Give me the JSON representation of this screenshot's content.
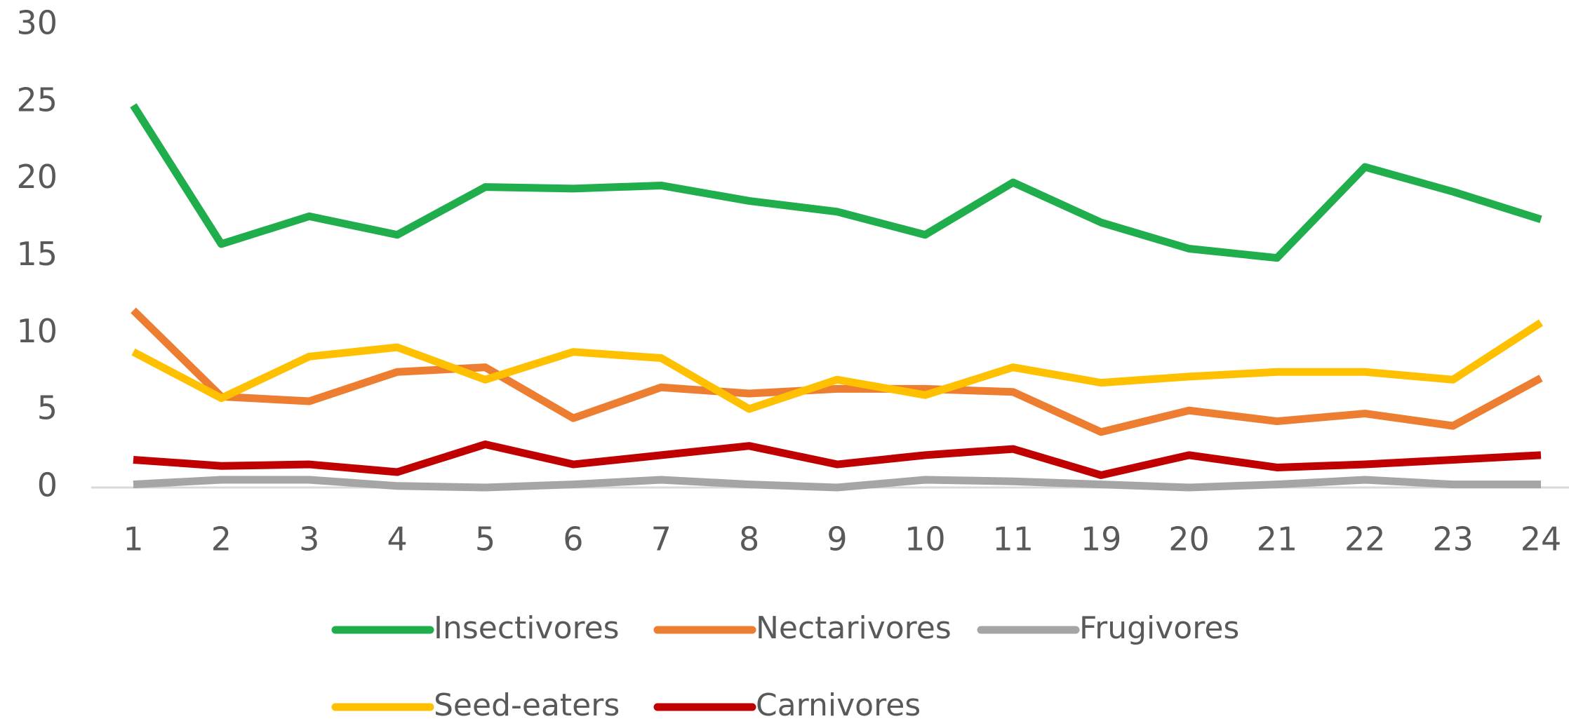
{
  "chart_data": {
    "type": "line",
    "categories": [
      "1",
      "2",
      "3",
      "4",
      "5",
      "6",
      "7",
      "8",
      "9",
      "10",
      "11",
      "19",
      "20",
      "21",
      "22",
      "23",
      "24"
    ],
    "series": [
      {
        "name": "Insectivores",
        "color": "#1fae4b",
        "values": [
          24.8,
          15.8,
          17.6,
          16.4,
          19.5,
          19.4,
          19.6,
          18.6,
          17.9,
          16.4,
          19.8,
          17.2,
          15.5,
          14.9,
          20.8,
          19.2,
          17.4
        ]
      },
      {
        "name": "Nectarivores",
        "color": "#ed7d31",
        "values": [
          11.5,
          5.9,
          5.6,
          7.5,
          7.8,
          4.5,
          6.5,
          6.1,
          6.4,
          6.4,
          6.2,
          3.6,
          5.0,
          4.3,
          4.8,
          4.0,
          7.1
        ]
      },
      {
        "name": "Frugivores",
        "color": "#a5a5a5",
        "values": [
          0.2,
          0.5,
          0.5,
          0.1,
          0.0,
          0.2,
          0.5,
          0.2,
          0.0,
          0.5,
          0.4,
          0.2,
          0.0,
          0.2,
          0.5,
          0.2,
          0.2
        ]
      },
      {
        "name": "Seed-eaters",
        "color": "#ffc000",
        "values": [
          8.8,
          5.8,
          8.5,
          9.1,
          7.0,
          8.8,
          8.4,
          5.1,
          7.0,
          6.0,
          7.8,
          6.8,
          7.2,
          7.5,
          7.5,
          7.0,
          10.7
        ]
      },
      {
        "name": "Carnivores",
        "color": "#c00000",
        "values": [
          1.8,
          1.4,
          1.5,
          1.0,
          2.8,
          1.5,
          2.1,
          2.7,
          1.5,
          2.1,
          2.5,
          0.8,
          2.1,
          1.3,
          1.5,
          1.8,
          2.1
        ]
      }
    ],
    "ylim": [
      0,
      30
    ],
    "yticks": [
      0,
      5,
      10,
      15,
      20,
      25,
      30
    ],
    "grid": false,
    "legend": "bottom"
  }
}
